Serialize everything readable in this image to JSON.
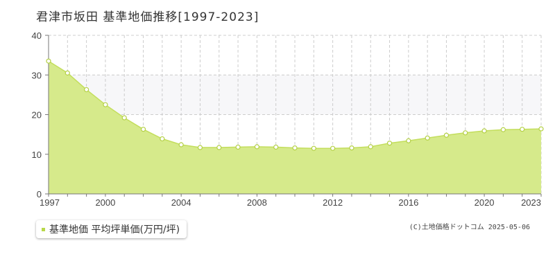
{
  "page": {
    "title": "君津市坂田  基準地価推移[1997-2023]"
  },
  "chart_data": {
    "type": "area",
    "title": "君津市坂田  基準地価推移[1997-2023]",
    "x": [
      1997,
      1998,
      1999,
      2000,
      2001,
      2002,
      2003,
      2004,
      2005,
      2006,
      2007,
      2008,
      2009,
      2010,
      2011,
      2012,
      2013,
      2014,
      2015,
      2016,
      2017,
      2018,
      2019,
      2020,
      2021,
      2022,
      2023
    ],
    "series": [
      {
        "name": "基準地価 平均坪単価(万円/坪)",
        "values": [
          33.5,
          30.5,
          26.3,
          22.5,
          19.2,
          16.3,
          13.9,
          12.4,
          11.7,
          11.7,
          11.8,
          11.9,
          11.8,
          11.6,
          11.5,
          11.5,
          11.6,
          11.9,
          12.8,
          13.4,
          14.1,
          14.8,
          15.4,
          15.9,
          16.2,
          16.3,
          16.4
        ]
      }
    ],
    "xlim": [
      1997,
      2023
    ],
    "ylim": [
      0,
      40
    ],
    "x_ticks": [
      "1997",
      "2000",
      "2004",
      "2008",
      "2012",
      "2016",
      "2020",
      "2023"
    ],
    "y_ticks": [
      "0",
      "10",
      "20",
      "30",
      "40"
    ],
    "grid": true,
    "legend_position": "bottom-left",
    "colors": {
      "fill": "#d6ea8b",
      "line": "#c3de5c",
      "marker_stroke": "#b4d045",
      "grid": "#cccccc",
      "band": "#f7f7f9"
    }
  },
  "legend": {
    "label": "基準地価 平均坪単価(万円/坪)"
  },
  "source": {
    "text": "(C)土地価格ドットコム 2025-05-06"
  }
}
